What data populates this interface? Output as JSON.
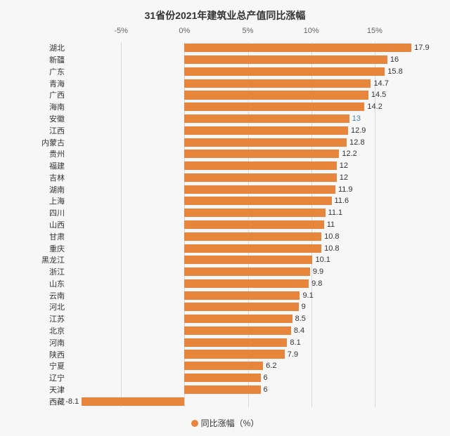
{
  "chart": {
    "type": "bar",
    "orientation": "horizontal",
    "title": "31省份2021年建筑业总产值同比涨幅",
    "title_fontsize": 14,
    "title_color": "#333333",
    "background_color": "#f7f7f7",
    "bar_color": "#e8853c",
    "grid_color": "#d9d9d9",
    "label_color": "#333333",
    "axis_label_color": "#666666",
    "label_fontsize": 11,
    "xlim_min": -9,
    "xlim_max": 19,
    "x_ticks": [
      {
        "value": -5,
        "label": "-5%"
      },
      {
        "value": 0,
        "label": "0%"
      },
      {
        "value": 5,
        "label": "5%"
      },
      {
        "value": 10,
        "label": "10%"
      },
      {
        "value": 15,
        "label": "15%"
      }
    ],
    "bar_height_ratio": 0.72,
    "categories": [
      {
        "name": "湖北",
        "value": 17.9,
        "label": "17.9"
      },
      {
        "name": "新疆",
        "value": 16,
        "label": "16"
      },
      {
        "name": "广东",
        "value": 15.8,
        "label": "15.8"
      },
      {
        "name": "青海",
        "value": 14.7,
        "label": "14.7"
      },
      {
        "name": "广西",
        "value": 14.5,
        "label": "14.5"
      },
      {
        "name": "海南",
        "value": 14.2,
        "label": "14.2"
      },
      {
        "name": "安徽",
        "value": 13,
        "label": "13",
        "label_color": "#4a7ba6"
      },
      {
        "name": "江西",
        "value": 12.9,
        "label": "12.9"
      },
      {
        "name": "内蒙古",
        "value": 12.8,
        "label": "12.8"
      },
      {
        "name": "贵州",
        "value": 12.2,
        "label": "12.2"
      },
      {
        "name": "福建",
        "value": 12,
        "label": "12"
      },
      {
        "name": "吉林",
        "value": 12,
        "label": "12"
      },
      {
        "name": "湖南",
        "value": 11.9,
        "label": "11.9"
      },
      {
        "name": "上海",
        "value": 11.6,
        "label": "11.6"
      },
      {
        "name": "四川",
        "value": 11.1,
        "label": "11.1"
      },
      {
        "name": "山西",
        "value": 11,
        "label": "11"
      },
      {
        "name": "甘肃",
        "value": 10.8,
        "label": "10.8"
      },
      {
        "name": "重庆",
        "value": 10.8,
        "label": "10.8"
      },
      {
        "name": "黑龙江",
        "value": 10.1,
        "label": "10.1"
      },
      {
        "name": "浙江",
        "value": 9.9,
        "label": "9.9"
      },
      {
        "name": "山东",
        "value": 9.8,
        "label": "9.8"
      },
      {
        "name": "云南",
        "value": 9.1,
        "label": "9.1"
      },
      {
        "name": "河北",
        "value": 9,
        "label": "9"
      },
      {
        "name": "江苏",
        "value": 8.5,
        "label": "8.5"
      },
      {
        "name": "北京",
        "value": 8.4,
        "label": "8.4"
      },
      {
        "name": "河南",
        "value": 8.1,
        "label": "8.1"
      },
      {
        "name": "陕西",
        "value": 7.9,
        "label": "7.9"
      },
      {
        "name": "宁夏",
        "value": 6.2,
        "label": "6.2"
      },
      {
        "name": "辽宁",
        "value": 6,
        "label": "6"
      },
      {
        "name": "天津",
        "value": 6,
        "label": "6"
      },
      {
        "name": "西藏",
        "value": -8.1,
        "label": "-8.1"
      }
    ],
    "legend": {
      "label": "同比涨幅（%）",
      "marker_color": "#e8853c"
    }
  }
}
